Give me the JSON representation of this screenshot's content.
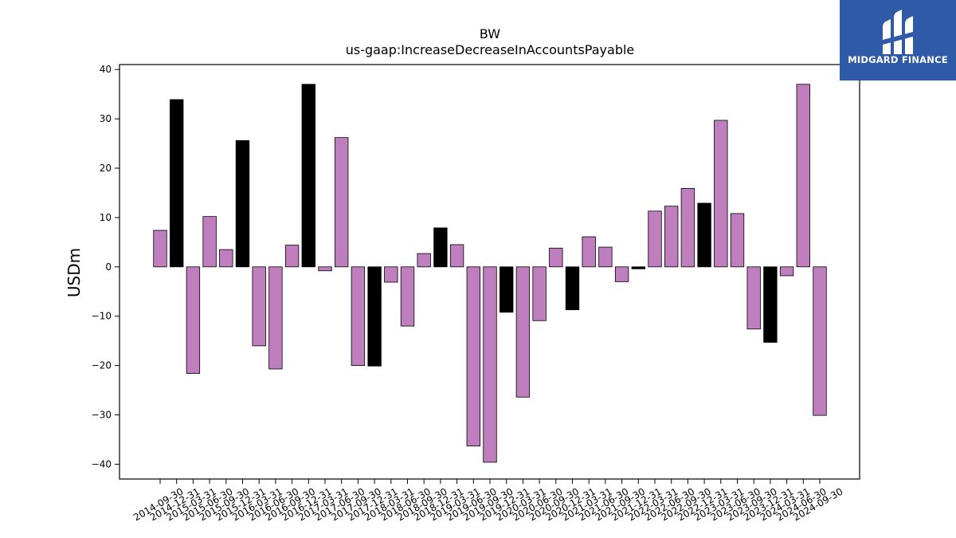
{
  "brand": {
    "name": "MIDGARD FINANCE",
    "logo_icon": "midgard-logo-icon",
    "background_color": "#2f5aa8"
  },
  "colors": {
    "bar_default": "#bf7fbf",
    "bar_highlight": "#000000",
    "edge": "#000000"
  },
  "chart_data": {
    "type": "bar",
    "title": "BW",
    "subtitle": "us-gaap:IncreaseDecreaseInAccountsPayable",
    "xlabel": "",
    "ylabel": "USDm",
    "ylim": [
      -43,
      41
    ],
    "yticks": [
      40,
      30,
      20,
      10,
      0,
      -10,
      -20,
      -30,
      -40
    ],
    "grid": false,
    "categories": [
      "2014-09-30",
      "2014-12-31",
      "2015-03-31",
      "2015-06-30",
      "2015-09-30",
      "2015-12-31",
      "2016-03-31",
      "2016-06-30",
      "2016-09-30",
      "2016-12-31",
      "2017-03-31",
      "2017-06-30",
      "2017-09-30",
      "2017-12-31",
      "2018-03-31",
      "2018-06-30",
      "2018-09-30",
      "2018-12-31",
      "2019-03-31",
      "2019-06-30",
      "2019-09-30",
      "2019-12-31",
      "2020-03-31",
      "2020-06-30",
      "2020-09-30",
      "2020-12-31",
      "2021-03-31",
      "2021-06-30",
      "2021-09-30",
      "2021-12-31",
      "2022-03-31",
      "2022-06-30",
      "2022-09-30",
      "2022-12-31",
      "2023-03-31",
      "2023-06-30",
      "2023-09-30",
      "2023-12-31",
      "2024-03-31",
      "2024-06-30",
      "2024-09-30"
    ],
    "values": [
      7.4,
      33.9,
      -21.6,
      10.2,
      3.5,
      25.6,
      -16.0,
      -20.7,
      4.4,
      37.0,
      -0.8,
      26.2,
      -20.0,
      -20.1,
      -3.1,
      -12.0,
      2.7,
      7.9,
      4.5,
      -36.3,
      -39.6,
      -9.2,
      -26.4,
      -10.9,
      3.8,
      -8.7,
      6.1,
      4.0,
      -3.0,
      -0.4,
      11.3,
      12.3,
      15.9,
      12.9,
      29.7,
      10.8,
      -12.6,
      -15.3,
      -1.8,
      37.0,
      -30.1
    ],
    "highlight": [
      false,
      true,
      false,
      false,
      false,
      true,
      false,
      false,
      false,
      true,
      false,
      false,
      false,
      true,
      false,
      false,
      false,
      true,
      false,
      false,
      false,
      true,
      false,
      false,
      false,
      true,
      false,
      false,
      false,
      true,
      false,
      false,
      false,
      true,
      false,
      false,
      false,
      true,
      false,
      false,
      false
    ]
  }
}
